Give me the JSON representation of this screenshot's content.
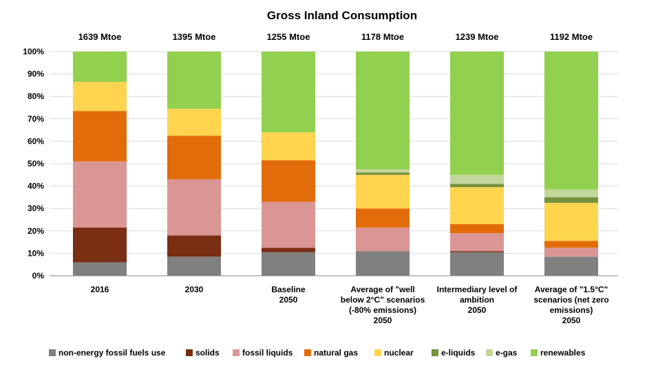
{
  "chart_data": {
    "type": "bar",
    "stacked": true,
    "title": "Gross Inland Consumption",
    "xlabel": "",
    "ylabel": "",
    "ylim": [
      0,
      100
    ],
    "y_unit": "%",
    "y_ticks": [
      "0%",
      "10%",
      "20%",
      "30%",
      "40%",
      "50%",
      "60%",
      "70%",
      "80%",
      "90%",
      "100%"
    ],
    "grid": true,
    "legend_position": "bottom",
    "categories": [
      [
        "2016"
      ],
      [
        "2030"
      ],
      [
        "Baseline",
        "2050"
      ],
      [
        "Average of \"well",
        "below 2°C\" scenarios",
        "(-80% emissions)",
        "2050"
      ],
      [
        "Intermediary level of",
        "ambition",
        "2050"
      ],
      [
        "Average of \"1.5°C\"",
        "scenarios (net zero",
        "emissions)",
        "2050"
      ]
    ],
    "totals": [
      "1639 Mtoe",
      "1395 Mtoe",
      "1255 Mtoe",
      "1178 Mtoe",
      "1239 Mtoe",
      "1192 Mtoe"
    ],
    "series": [
      {
        "name": "non-energy fossil fuels use",
        "color": "#808080",
        "values": [
          6,
          8.5,
          10.5,
          11,
          10.5,
          8.5
        ]
      },
      {
        "name": "solids",
        "color": "#7a2e12",
        "values": [
          15.5,
          9.5,
          2,
          0,
          0.5,
          0
        ]
      },
      {
        "name": "fossil liquids",
        "color": "#da9694",
        "values": [
          29.5,
          25,
          20.5,
          10.5,
          8,
          4
        ]
      },
      {
        "name": "natural gas",
        "color": "#e36c0a",
        "values": [
          22.5,
          19.5,
          18.5,
          8.5,
          4,
          3
        ]
      },
      {
        "name": "nuclear",
        "color": "#ffd44f",
        "values": [
          13,
          12,
          12.5,
          15,
          16.5,
          17
        ]
      },
      {
        "name": "e-liquids",
        "color": "#76923c",
        "values": [
          0,
          0,
          0,
          1,
          1.5,
          2.5
        ]
      },
      {
        "name": "e-gas",
        "color": "#c3d69b",
        "values": [
          0,
          0,
          0,
          1.5,
          4,
          3.5
        ]
      },
      {
        "name": "renewables",
        "color": "#92d050",
        "values": [
          13.5,
          25.5,
          36,
          52.5,
          55,
          61.5
        ]
      }
    ]
  }
}
